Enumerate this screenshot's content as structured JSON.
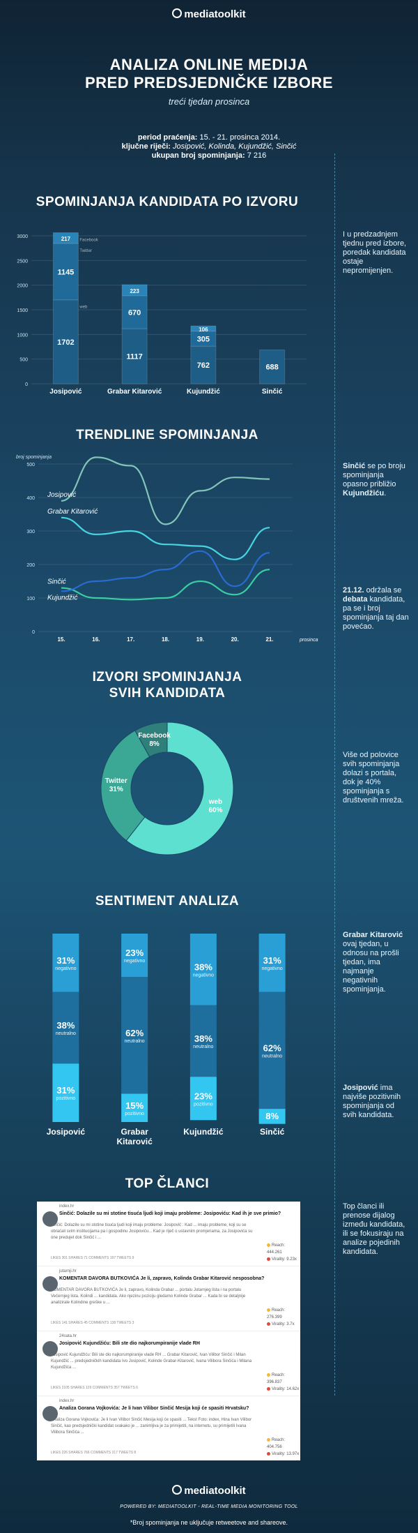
{
  "header": {
    "logo": "mediatoolkit",
    "title_line1": "ANALIZA ONLINE MEDIJA",
    "title_line2": "PRED PREDSJEDNIČKE IZBORE",
    "subtitle": "treći tjedan prosinca",
    "period_label": "period praćenja:",
    "period_value": "15. - 21. prosinca 2014.",
    "keywords_label": "ključne riječi:",
    "keywords_value": "Josipović, Kolinda, Kujundžić, Sinčić",
    "total_label": "ukupan broj spominjanja:",
    "total_value": "7 216"
  },
  "sections": {
    "by_source": "SPOMINJANJA KANDIDATA PO IZVORU",
    "trendline": "TRENDLINE SPOMINJANJA",
    "sources_l1": "IZVORI SPOMINJANJA",
    "sources_l2": "SVIH KANDIDATA",
    "sentiment": "SENTIMENT ANALIZA",
    "top": "TOP ČLANCI"
  },
  "sidenotes": {
    "n1": "I u predzadnjem tjednu pred izbore, poredak kandidata ostaje nepromijenjen.",
    "n2_b1": "Sinčić",
    "n2_t1": " se po broju spominjanja opasno približio ",
    "n2_b2": "Kujundžiću",
    "n2_t2": ".",
    "n3_b1": "21.12.",
    "n3_t1": " održala se ",
    "n3_b2": "debata",
    "n3_t2": " kandidata, pa se i broj spominjanja taj dan povećao.",
    "n4": "Više od polovice svih spominjanja dolazi s portala, dok je 40% spominjanja s društvenih mreža.",
    "n5_b1": "Grabar Kitarović",
    "n5_t1": " ovaj tjedan, u odnosu na prošli tjedan, ima najmanje negativnih spominjanja.",
    "n6_b1": "Josipović",
    "n6_t1": " ima najviše pozitivnih spominjanja od svih kandidata.",
    "n7": "Top članci ili prenose dijalog između kandidata, ili se fokusiraju na analize pojedinih kandidata."
  },
  "chart_data": [
    {
      "type": "bar",
      "stacked": true,
      "categories": [
        "Josipović",
        "Grabar Kitarović",
        "Kujundžić",
        "Sinčić"
      ],
      "series": [
        {
          "name": "web",
          "values": [
            1702,
            1117,
            762,
            688
          ],
          "color": "#1e5d86"
        },
        {
          "name": "Twitter",
          "values": [
            1145,
            670,
            305,
            0
          ],
          "color": "#1f6a99"
        },
        {
          "name": "Facebook",
          "values": [
            217,
            223,
            106,
            0
          ],
          "color": "#2a84b8"
        }
      ],
      "series_labels": [
        "web",
        "Twitter",
        "Facebook"
      ],
      "ylim": [
        0,
        3000
      ],
      "yticks": [
        "0",
        "500",
        "1000",
        "1500",
        "2000",
        "2500",
        "3000"
      ]
    },
    {
      "type": "line",
      "x": [
        "15.",
        "16.",
        "17.",
        "18.",
        "19.",
        "20.",
        "21."
      ],
      "xlabel": "prosinca",
      "ylabel": "broj spominjanja",
      "ylim": [
        0,
        500
      ],
      "yticks": [
        "0",
        "100",
        "200",
        "300",
        "400",
        "500"
      ],
      "series": [
        {
          "name": "Josipović",
          "values": [
            390,
            520,
            495,
            320,
            420,
            460,
            455
          ],
          "color": "#8fd3c3"
        },
        {
          "name": "Grabar Kitarović",
          "values": [
            340,
            290,
            300,
            260,
            255,
            215,
            310
          ],
          "color": "#4fe3f0"
        },
        {
          "name": "Sinčić",
          "values": [
            130,
            100,
            95,
            100,
            150,
            110,
            185
          ],
          "color": "#3fdca8"
        },
        {
          "name": "Kujundžić",
          "values": [
            120,
            150,
            160,
            185,
            240,
            135,
            235
          ],
          "color": "#2a6fe0"
        }
      ]
    },
    {
      "type": "pie",
      "donut": true,
      "slices": [
        {
          "label": "web",
          "value": 60,
          "text": "60%",
          "color": "#5de0cf"
        },
        {
          "label": "Twitter",
          "value": 31,
          "text": "31%",
          "color": "#3aa894"
        },
        {
          "label": "Facebook",
          "value": 8,
          "text": "8%",
          "color": "#2f7f7a"
        }
      ]
    },
    {
      "type": "bar",
      "stacked": true,
      "percent": true,
      "categories": [
        "Josipović",
        "Grabar Kitarović",
        "Kujundžić",
        "Sinčić"
      ],
      "series": [
        {
          "name": "negativno",
          "values": [
            31,
            23,
            38,
            31
          ],
          "color": "#2a9fd6"
        },
        {
          "name": "neutralno",
          "values": [
            38,
            62,
            38,
            62
          ],
          "color": "#1f6f9e"
        },
        {
          "name": "pozitivno",
          "values": [
            31,
            15,
            23,
            8
          ],
          "color": "#33c6f0"
        }
      ]
    }
  ],
  "articles": [
    {
      "source": "index.hr",
      "title": "Sinčić: Dolazile su mi stotine tisuća ljudi koji imaju probleme: Josipoviću: Kad ih je sve primio?",
      "snippet": "Sinčić: Dolazile su mi stotine tisuća ljudi koji imaju probleme: Josipović : Kad ... imaju probleme, koji su se obraćali svim institucijama pa i gospodinu Josipoviću... Kad je riječ o ustavnim promjenama, za Josipovića su one predujet dok Sinčić i ...",
      "meta": "LIKES 301   SHARES 71   COMMENTS 197   TWEETS 9",
      "reach": "Reach: 444.261",
      "virality": "Virality: 9.23x"
    },
    {
      "source": "jutarnji.hr",
      "title": "KOMENTAR DAVORA BUTKOVIĆA Je li, zapravo, Kolinda Grabar Kitarović nesposobna?",
      "snippet": "KOMENTAR DAVORA BUTKOVIĆA Je li, zapravo, Kolinda Grabar ... portalu Jutarnjeg lista i na portalu Večernjeg lista. Kolindi ... kandidata. Ako njezinu poziciju gledamo Kolinde Grabar ... Kada bi se detaljnije analizirale Kolindine greške u ...",
      "meta": "LIKES 141   SHARES 45   COMMENTS 138   TWEETS 3",
      "reach": "Reach: 276.399",
      "virality": "Virality: 3.7x"
    },
    {
      "source": "24sata.hr",
      "title": "Josipović Kujundžiću: Bili ste dio najkorumpiranije vlade RH",
      "snippet": "Josipović Kujundžiću: Bili ste dio najkorumpiranije vlade RH ... Grabar Kitarović, Ivan Vilibor Sinčić i Milan Kujundžić ... predsjedničkih kandidata Ivo Josipović, Kolinde Grabar-Kitarović, Ivana Vilibora Sinčića i Milana Kujundžića ...",
      "meta": "LIKES 2105   SHARES 129   COMMENTS 357   TWEETS 6",
      "reach": "Reach: 396.837",
      "virality": "Virality: 14.62x"
    },
    {
      "source": "index.hr",
      "title": "Analiza Gorana Vojkovića: Je li Ivan Vilibor Sinčić Mesija koji će spasiti Hrvatsku?",
      "snippet": "Analiza Gorana Vojkovića: Je li Ivan Vilibor Sinčić Mesija koji će spasiti ... Tekst Foto: index, Hina Ivan Vilibor Sinčić, kao predsjednički kandidat svakako je ... zanimljiva je za primijetiti, na internetu, su primijetili Ivana Vilibora Sinčića ...",
      "meta": "LIKES 226   SHARES 766   COMMENTS 317   TWEETS 8",
      "reach": "Reach: 404.756",
      "virality": "Virality: 13.97x"
    }
  ],
  "footer": {
    "logo": "mediatoolkit",
    "powered": "POWERED BY: MEDIATOOLKIT - REAL-TIME MEDIA MONITORING TOOL",
    "note": "*Broj spominjanja ne uključuje retweetove and shareove."
  },
  "colors": {
    "accent_dark": "#1e5d86",
    "accent_light": "#33c6f0",
    "teal": "#5de0cf"
  }
}
